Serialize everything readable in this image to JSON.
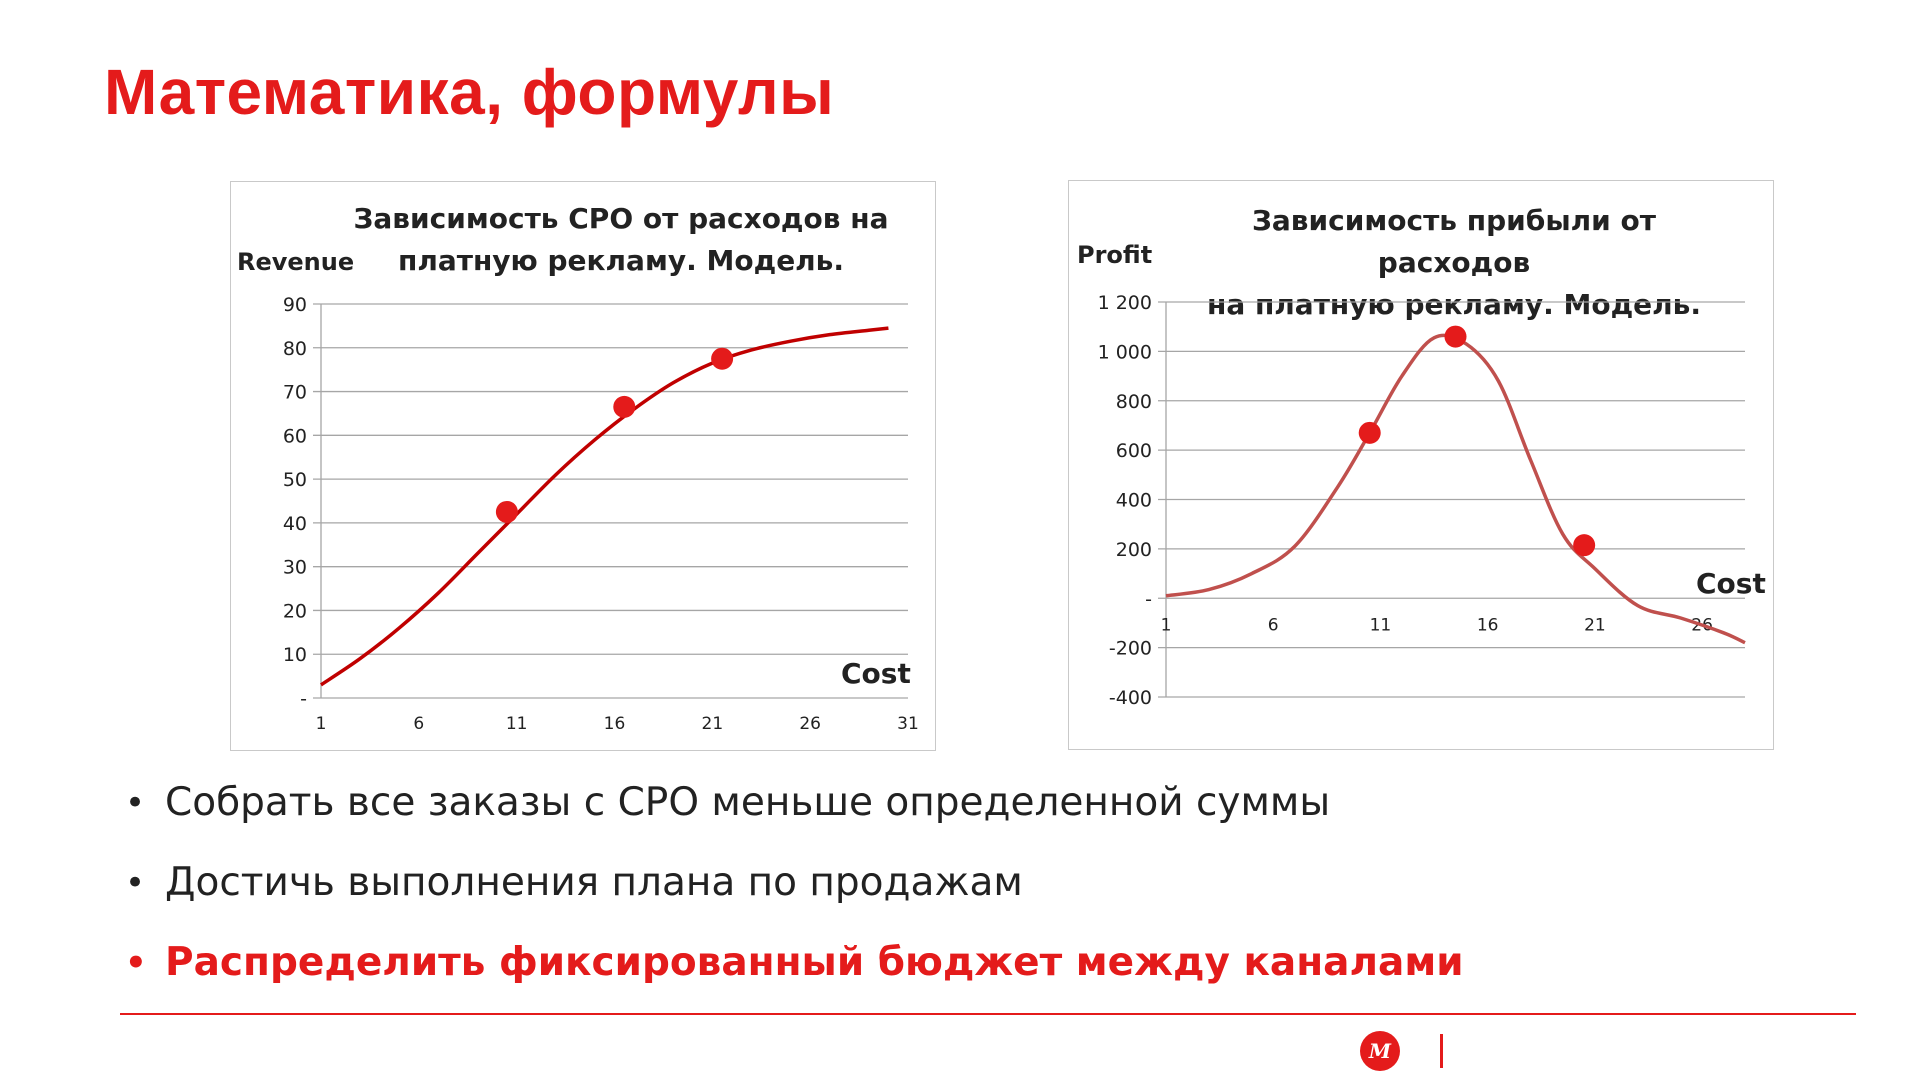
{
  "slide": {
    "title": "Математика, формулы"
  },
  "bullets": [
    {
      "text": "Собрать все заказы с CPO меньше определенной суммы",
      "highlight": false
    },
    {
      "text": "Достичь выполнения плана по продажам",
      "highlight": false
    },
    {
      "text": "Распределить фиксированный бюджет между каналами",
      "highlight": true
    }
  ],
  "bullet_symbol": "•",
  "footer": {
    "logo_text": "М"
  },
  "colors": {
    "accent": "#e41b1b",
    "curve": "#c00000",
    "curve_profit": "#c0504d",
    "grid": "#a6a6a6"
  },
  "chart_data": [
    {
      "type": "line",
      "title_lines": [
        "Зависимость CPO от расходов на",
        "платную рекламу. Модель."
      ],
      "ylabel": "Revenue",
      "xlabel": "Cost",
      "ylim": [
        0,
        90
      ],
      "xlim": [
        1,
        31
      ],
      "y_ticks": [
        0,
        10,
        20,
        30,
        40,
        50,
        60,
        70,
        80,
        90
      ],
      "y_tick_labels": [
        "-",
        "10",
        "20",
        "30",
        "40",
        "50",
        "60",
        "70",
        "80",
        "90"
      ],
      "x_tick_labels": [
        "1",
        "6",
        "11",
        "16",
        "21",
        "26",
        "31"
      ],
      "x_tick_values": [
        1,
        6,
        11,
        16,
        21,
        26,
        31
      ],
      "grid": true,
      "series": [
        {
          "x": [
            1,
            3,
            5,
            7,
            9,
            11,
            13,
            15,
            17,
            19,
            21,
            23,
            25,
            27,
            29,
            30
          ],
          "y": [
            3,
            9,
            16,
            24,
            33,
            42,
            51,
            59,
            66,
            72,
            76.5,
            79.5,
            81.5,
            83,
            84,
            84.5
          ]
        }
      ],
      "markers": [
        {
          "x": 10.5,
          "y": 42.5
        },
        {
          "x": 16.5,
          "y": 66.5
        },
        {
          "x": 21.5,
          "y": 77.5
        }
      ]
    },
    {
      "type": "line",
      "title_lines": [
        "Зависимость прибыли от расходов",
        "на платную рекламу. Модель."
      ],
      "ylabel": "Profit",
      "xlabel": "Cost",
      "ylim": [
        -400,
        1200
      ],
      "xlim": [
        1,
        28
      ],
      "y_ticks": [
        -400,
        -200,
        0,
        200,
        400,
        600,
        800,
        1000,
        1200
      ],
      "y_tick_labels": [
        "-400",
        "-200",
        "-",
        "200",
        "400",
        "600",
        "800",
        "1 000",
        "1 200"
      ],
      "x_tick_labels": [
        "1",
        "6",
        "11",
        "16",
        "21",
        "26"
      ],
      "x_tick_values": [
        1,
        6,
        11,
        16,
        21,
        26
      ],
      "grid": true,
      "series": [
        {
          "x": [
            1,
            3,
            5,
            7,
            9,
            10.5,
            12,
            13.5,
            15,
            16.5,
            18,
            19.5,
            21,
            23,
            25,
            27,
            28
          ],
          "y": [
            10,
            35,
            100,
            210,
            450,
            670,
            900,
            1055,
            1030,
            880,
            560,
            260,
            120,
            -30,
            -80,
            -140,
            -180
          ]
        }
      ],
      "markers": [
        {
          "x": 10.5,
          "y": 670
        },
        {
          "x": 14.5,
          "y": 1060
        },
        {
          "x": 20.5,
          "y": 215
        }
      ]
    }
  ]
}
